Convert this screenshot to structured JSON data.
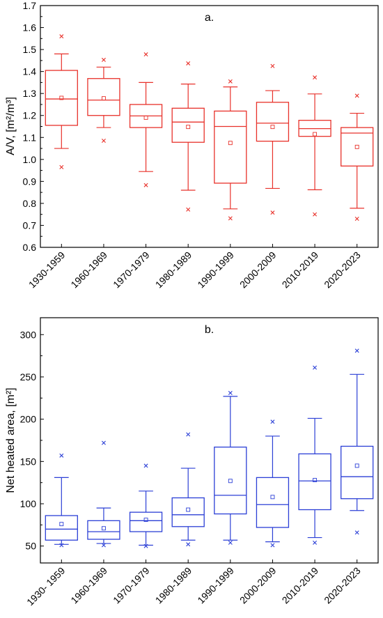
{
  "chart_data": [
    {
      "type": "box",
      "panel_label": "a.",
      "ylabel": "A/V, [m²/m³]",
      "ylim": [
        0.6,
        1.7
      ],
      "yticks": [
        0.6,
        0.7,
        0.8,
        0.9,
        1.0,
        1.1,
        1.2,
        1.3,
        1.4,
        1.5,
        1.6,
        1.7
      ],
      "color": "#e8312a",
      "categories": [
        "1930-1959",
        "1960-1969",
        "1970-1979",
        "1980-1989",
        "1990-1999",
        "2000-2009",
        "2010-2019",
        "2020-2023"
      ],
      "boxes": [
        {
          "whisker_low": 1.05,
          "q1": 1.155,
          "median": 1.275,
          "q3": 1.405,
          "whisker_high": 1.48,
          "mean": 1.28,
          "min": 0.965,
          "max": 1.56
        },
        {
          "whisker_low": 1.145,
          "q1": 1.2,
          "median": 1.27,
          "q3": 1.368,
          "whisker_high": 1.42,
          "mean": 1.278,
          "min": 1.085,
          "max": 1.453
        },
        {
          "whisker_low": 0.945,
          "q1": 1.145,
          "median": 1.198,
          "q3": 1.25,
          "whisker_high": 1.35,
          "mean": 1.19,
          "min": 0.883,
          "max": 1.478
        },
        {
          "whisker_low": 0.86,
          "q1": 1.078,
          "median": 1.17,
          "q3": 1.233,
          "whisker_high": 1.343,
          "mean": 1.148,
          "min": 0.772,
          "max": 1.437
        },
        {
          "whisker_low": 0.775,
          "q1": 0.892,
          "median": 1.15,
          "q3": 1.22,
          "whisker_high": 1.33,
          "mean": 1.075,
          "min": 0.732,
          "max": 1.355
        },
        {
          "whisker_low": 0.868,
          "q1": 1.083,
          "median": 1.165,
          "q3": 1.26,
          "whisker_high": 1.313,
          "mean": 1.148,
          "min": 0.758,
          "max": 1.425
        },
        {
          "whisker_low": 0.862,
          "q1": 1.105,
          "median": 1.14,
          "q3": 1.178,
          "whisker_high": 1.298,
          "mean": 1.115,
          "min": 0.75,
          "max": 1.373
        },
        {
          "whisker_low": 0.778,
          "q1": 0.97,
          "median": 1.12,
          "q3": 1.145,
          "whisker_high": 1.21,
          "mean": 1.057,
          "min": 0.73,
          "max": 1.29
        }
      ]
    },
    {
      "type": "box",
      "panel_label": "b.",
      "ylabel": "Net heated area, [m²]",
      "ylim": [
        30,
        320
      ],
      "yticks": [
        50,
        100,
        150,
        200,
        250,
        300
      ],
      "color": "#2b3fd6",
      "categories": [
        "1930- 1959",
        "1960-1969",
        "1970-1979",
        "1980-1989",
        "1990-1999",
        "2000-2009",
        "2010-2019",
        "2020-2023"
      ],
      "boxes": [
        {
          "whisker_low": 52,
          "q1": 57,
          "median": 70,
          "q3": 86,
          "whisker_high": 131,
          "mean": 76,
          "min": 51,
          "max": 157
        },
        {
          "whisker_low": 53,
          "q1": 58,
          "median": 67,
          "q3": 80,
          "whisker_high": 95,
          "mean": 71,
          "min": 51,
          "max": 172
        },
        {
          "whisker_low": 51,
          "q1": 67,
          "median": 80,
          "q3": 90,
          "whisker_high": 115,
          "mean": 81,
          "min": 50,
          "max": 145
        },
        {
          "whisker_low": 57,
          "q1": 73,
          "median": 87,
          "q3": 107,
          "whisker_high": 142,
          "mean": 93,
          "min": 52,
          "max": 182
        },
        {
          "whisker_low": 57,
          "q1": 88,
          "median": 110,
          "q3": 167,
          "whisker_high": 227,
          "mean": 127,
          "min": 54,
          "max": 231
        },
        {
          "whisker_low": 55,
          "q1": 72,
          "median": 99,
          "q3": 131,
          "whisker_high": 180,
          "mean": 108,
          "min": 51,
          "max": 197
        },
        {
          "whisker_low": 60,
          "q1": 93,
          "median": 127,
          "q3": 159,
          "whisker_high": 201,
          "mean": 128,
          "min": 54,
          "max": 261
        },
        {
          "whisker_low": 92,
          "q1": 106,
          "median": 132,
          "q3": 168,
          "whisker_high": 253,
          "mean": 145,
          "min": 66,
          "max": 281
        }
      ]
    }
  ]
}
